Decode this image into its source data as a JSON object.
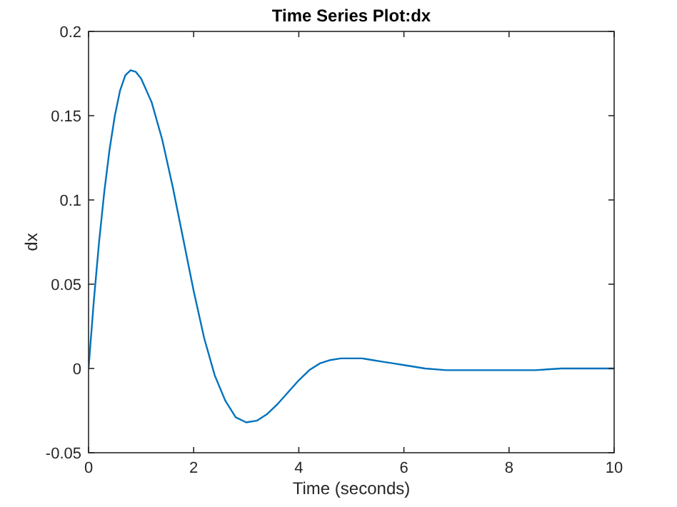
{
  "chart_data": {
    "type": "line",
    "title": "Time Series Plot:dx",
    "xlabel": "Time (seconds)",
    "ylabel": "dx",
    "xlim": [
      0,
      10
    ],
    "xticks": [
      0,
      2,
      4,
      6,
      8,
      10
    ],
    "ylim": [
      -0.05,
      0.2
    ],
    "yticks": [
      -0.05,
      0,
      0.05,
      0.1,
      0.15,
      0.2
    ],
    "grid": false,
    "series": [
      {
        "color": "#0072bd",
        "x": [
          0,
          0.1,
          0.2,
          0.3,
          0.4,
          0.5,
          0.6,
          0.7,
          0.8,
          0.9,
          1.0,
          1.2,
          1.4,
          1.6,
          1.8,
          2.0,
          2.2,
          2.4,
          2.6,
          2.8,
          3.0,
          3.2,
          3.4,
          3.6,
          3.8,
          4.0,
          4.2,
          4.4,
          4.6,
          4.8,
          5.0,
          5.2,
          5.4,
          5.6,
          5.8,
          6.0,
          6.4,
          6.8,
          7.2,
          7.6,
          8.0,
          8.5,
          9.0,
          9.5,
          10
        ],
        "values": [
          0,
          0.04,
          0.075,
          0.105,
          0.13,
          0.15,
          0.165,
          0.174,
          0.177,
          0.176,
          0.172,
          0.158,
          0.136,
          0.108,
          0.077,
          0.046,
          0.018,
          -0.004,
          -0.019,
          -0.029,
          -0.032,
          -0.031,
          -0.027,
          -0.021,
          -0.014,
          -0.007,
          -0.001,
          0.003,
          0.005,
          0.006,
          0.006,
          0.006,
          0.005,
          0.004,
          0.003,
          0.002,
          0,
          -0.001,
          -0.001,
          -0.001,
          -0.001,
          -0.001,
          0,
          0,
          0
        ]
      }
    ]
  }
}
